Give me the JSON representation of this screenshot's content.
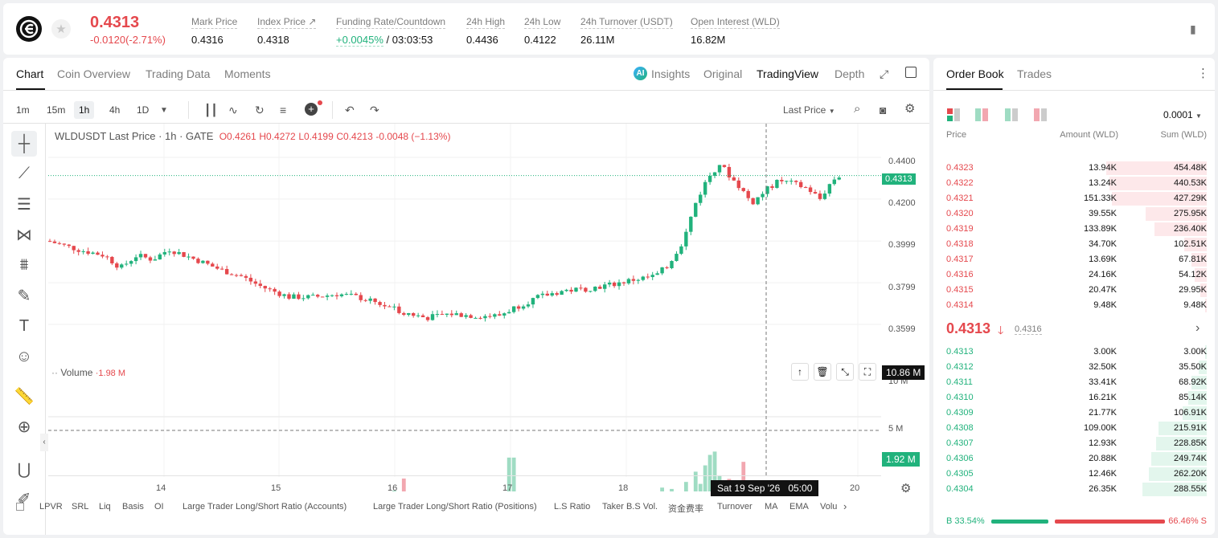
{
  "ticker": {
    "last_price": "0.4313",
    "change": "-0.0120(-2.71%)",
    "stats": [
      {
        "label": "Mark Price",
        "value": "0.4316"
      },
      {
        "label": "Index Price ↗",
        "value": "0.4318"
      },
      {
        "label": "Funding Rate/Countdown",
        "value_green": "+0.0045%",
        "value": "/ 03:03:53"
      },
      {
        "label": "24h High",
        "value": "0.4436"
      },
      {
        "label": "24h Low",
        "value": "0.4122"
      },
      {
        "label": "24h Turnover (USDT)",
        "value": "26.11M"
      },
      {
        "label": "Open Interest (WLD)",
        "value": "16.82M"
      }
    ]
  },
  "chart_tabs": [
    "Chart",
    "Coin Overview",
    "Trading Data",
    "Moments"
  ],
  "view_tabs": {
    "insights": "Insights",
    "original": "Original",
    "tradingview": "TradingView",
    "depth": "Depth"
  },
  "timeframes": [
    "1m",
    "15m",
    "1h",
    "4h",
    "1D"
  ],
  "price_type": "Last Price",
  "legend": {
    "symbol": "WLDUSDT Last Price · 1h · GATE",
    "o": "O0.4261",
    "h": "H0.4272",
    "l": "L0.4199",
    "c": "C0.4213",
    "chg": "-0.0048 (−1.13%)"
  },
  "volume_legend": {
    "label": "Volume",
    "value": "1.98 M"
  },
  "price_axis": [
    "0.4400",
    "0.4200",
    "0.3999",
    "0.3799",
    "0.3599"
  ],
  "last_price_tag": "0.4313",
  "volume_axis": [
    "10 M",
    "5 M"
  ],
  "volume_tag_top": "10.86 M",
  "volume_tag_bottom": "1.92 M",
  "time_axis": [
    "14",
    "15",
    "16",
    "17",
    "18",
    "20"
  ],
  "crosshair_time": "Sat 19 Sep '26   05:00",
  "indicators": [
    "LPVR",
    "SRL",
    "Liq",
    "Basis",
    "OI",
    "Large Trader Long/Short Ratio (Accounts)",
    "Large Trader Long/Short Ratio (Positions)",
    "L.S Ratio",
    "Taker B.S Vol.",
    "资金费率",
    "Turnover",
    "MA",
    "EMA",
    "Volu"
  ],
  "orderbook": {
    "tabs": [
      "Order Book",
      "Trades"
    ],
    "precision": "0.0001",
    "headers": {
      "price": "Price",
      "amount": "Amount (WLD)",
      "sum": "Sum (WLD)"
    },
    "asks": [
      {
        "p": "0.4323",
        "a": "13.94K",
        "s": "454.48K",
        "d": 0.454
      },
      {
        "p": "0.4322",
        "a": "13.24K",
        "s": "440.53K",
        "d": 0.44
      },
      {
        "p": "0.4321",
        "a": "151.33K",
        "s": "427.29K",
        "d": 0.427
      },
      {
        "p": "0.4320",
        "a": "39.55K",
        "s": "275.95K",
        "d": 0.276
      },
      {
        "p": "0.4319",
        "a": "133.89K",
        "s": "236.40K",
        "d": 0.236
      },
      {
        "p": "0.4318",
        "a": "34.70K",
        "s": "102.51K",
        "d": 0.102
      },
      {
        "p": "0.4317",
        "a": "13.69K",
        "s": "67.81K",
        "d": 0.068
      },
      {
        "p": "0.4316",
        "a": "24.16K",
        "s": "54.12K",
        "d": 0.054
      },
      {
        "p": "0.4315",
        "a": "20.47K",
        "s": "29.95K",
        "d": 0.03
      },
      {
        "p": "0.4314",
        "a": "9.48K",
        "s": "9.48K",
        "d": 0.009
      }
    ],
    "mid_price": "0.4313",
    "mid_mark": "0.4316",
    "bids": [
      {
        "p": "0.4313",
        "a": "3.00K",
        "s": "3.00K",
        "d": 0.003
      },
      {
        "p": "0.4312",
        "a": "32.50K",
        "s": "35.50K",
        "d": 0.036
      },
      {
        "p": "0.4311",
        "a": "33.41K",
        "s": "68.92K",
        "d": 0.069
      },
      {
        "p": "0.4310",
        "a": "16.21K",
        "s": "85.14K",
        "d": 0.085
      },
      {
        "p": "0.4309",
        "a": "21.77K",
        "s": "106.91K",
        "d": 0.107
      },
      {
        "p": "0.4308",
        "a": "109.00K",
        "s": "215.91K",
        "d": 0.216
      },
      {
        "p": "0.4307",
        "a": "12.93K",
        "s": "228.85K",
        "d": 0.229
      },
      {
        "p": "0.4306",
        "a": "20.88K",
        "s": "249.74K",
        "d": 0.25
      },
      {
        "p": "0.4305",
        "a": "12.46K",
        "s": "262.20K",
        "d": 0.262
      },
      {
        "p": "0.4304",
        "a": "26.35K",
        "s": "288.55K",
        "d": 0.289
      }
    ],
    "buy_ratio": "B 33.54%",
    "sell_ratio": "66.46% S",
    "buy_fraction": 0.3354
  },
  "colors": {
    "up": "#21b27c",
    "down": "#e5484d",
    "up_vol": "#9fdcc3",
    "down_vol": "#f2a7b0"
  }
}
